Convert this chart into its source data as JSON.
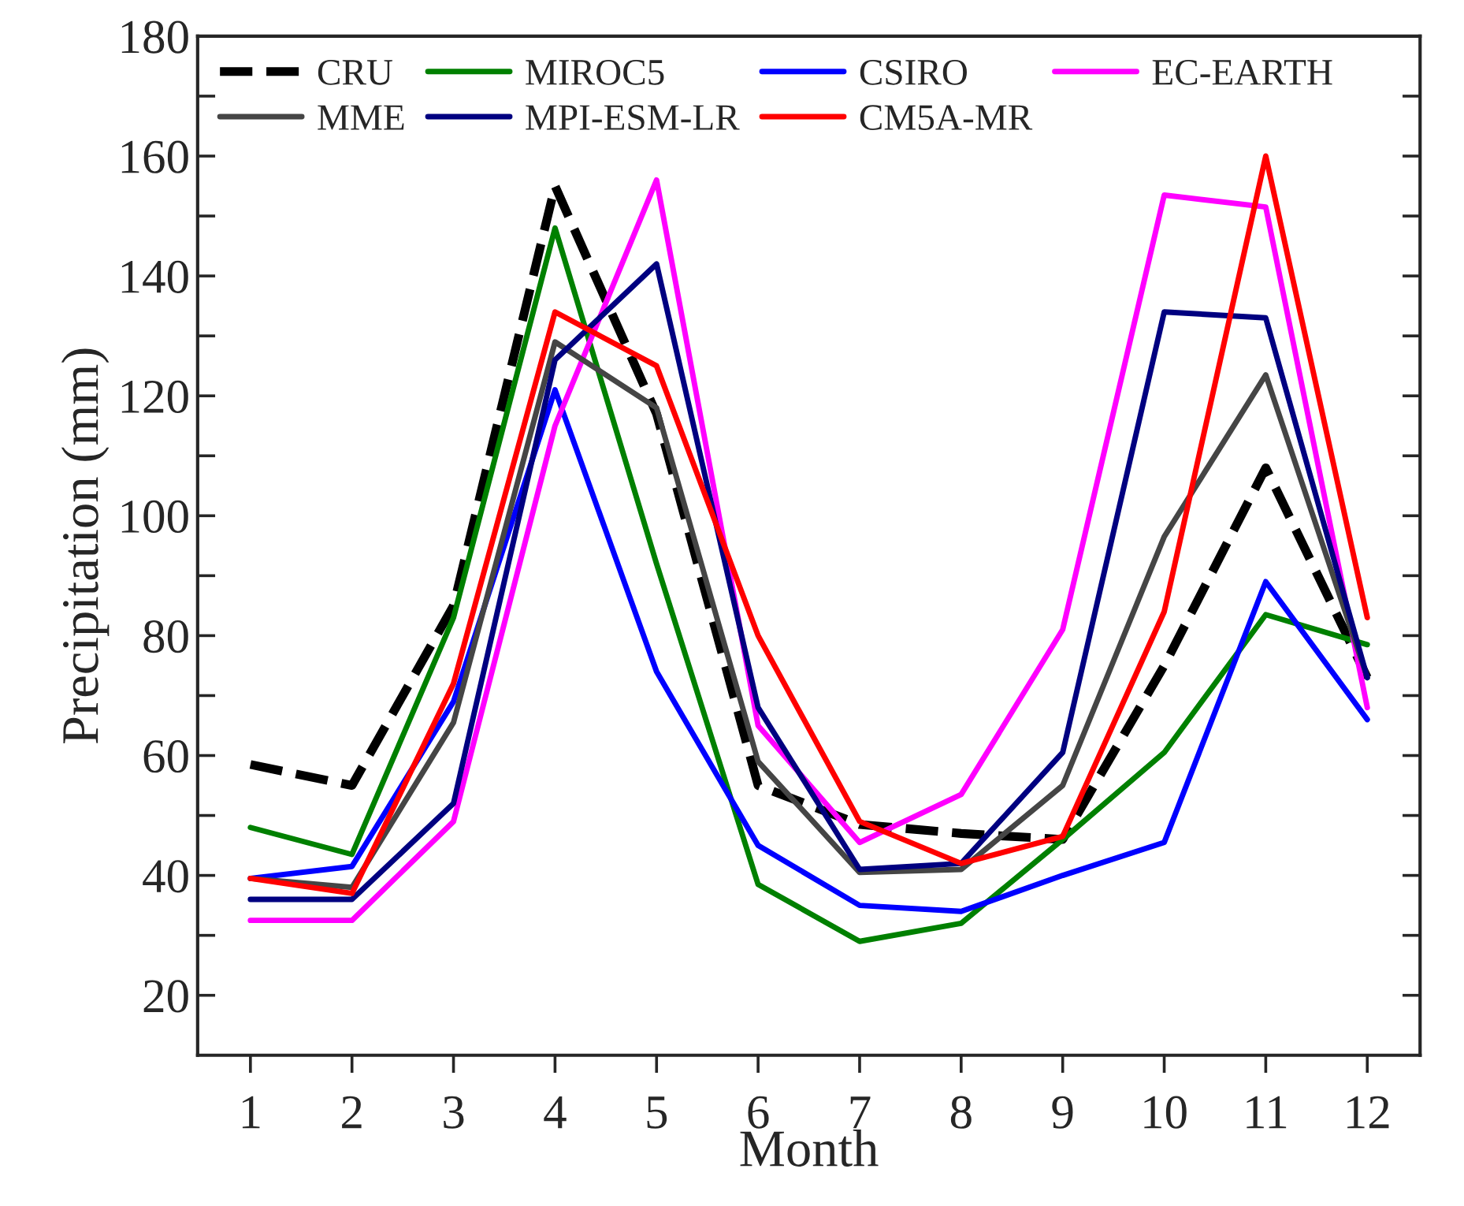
{
  "chart_data": {
    "type": "line",
    "xlabel": "Month",
    "ylabel": "Precipitation (mm)",
    "x": [
      1,
      2,
      3,
      4,
      5,
      6,
      7,
      8,
      9,
      10,
      11,
      12
    ],
    "xlim": [
      0.48,
      12.52
    ],
    "xticks": [
      1,
      2,
      3,
      4,
      5,
      6,
      7,
      8,
      9,
      10,
      11,
      12
    ],
    "ylim": [
      10,
      180
    ],
    "yticks": [
      20,
      {
        "value": 30,
        "label": null
      },
      40,
      {
        "value": 50,
        "label": null
      },
      60,
      {
        "value": 70,
        "label": null
      },
      80,
      {
        "value": 90,
        "label": null
      },
      100,
      {
        "value": 110,
        "label": null
      },
      120,
      {
        "value": 130,
        "label": null
      },
      140,
      {
        "value": 150,
        "label": null
      },
      160,
      {
        "value": 170,
        "label": null
      },
      180
    ],
    "grid": false,
    "legend": "top",
    "marker": "none",
    "series": [
      {
        "name": "CRU",
        "color": "#000000",
        "line_style": "dashed",
        "values": [
          58.5,
          55,
          85,
          155,
          117,
          55,
          48.5,
          47,
          46,
          75,
          108,
          73
        ]
      },
      {
        "name": "MIROC5",
        "color": "#008000",
        "values": [
          48,
          43.5,
          83,
          148,
          92,
          38.5,
          29,
          32,
          46,
          60.5,
          83.5,
          78.5
        ]
      },
      {
        "name": "CSIRO",
        "color": "#0000ff",
        "values": [
          39.5,
          41.5,
          69,
          121,
          74,
          45,
          35,
          34,
          40,
          45.5,
          89,
          66
        ]
      },
      {
        "name": "EC-EARTH",
        "color": "#ff00ff",
        "values": [
          32.5,
          32.5,
          49,
          115,
          156,
          65,
          45.5,
          53.5,
          81,
          153.5,
          151.5,
          68
        ]
      },
      {
        "name": "MME",
        "color": "#454545",
        "values": [
          39.5,
          38,
          65.5,
          129,
          118,
          59,
          40.5,
          41,
          55,
          96.5,
          123.5,
          73
        ]
      },
      {
        "name": "MPI-ESM-LR",
        "color": "#000080",
        "values": [
          36,
          36,
          52,
          126,
          142,
          68,
          41,
          42,
          60.5,
          134,
          133,
          73
        ]
      },
      {
        "name": "CM5A-MR",
        "color": "#ff0000",
        "values": [
          39.5,
          37,
          72,
          134,
          125,
          80,
          49,
          42,
          46.5,
          84,
          160,
          83
        ]
      }
    ]
  }
}
